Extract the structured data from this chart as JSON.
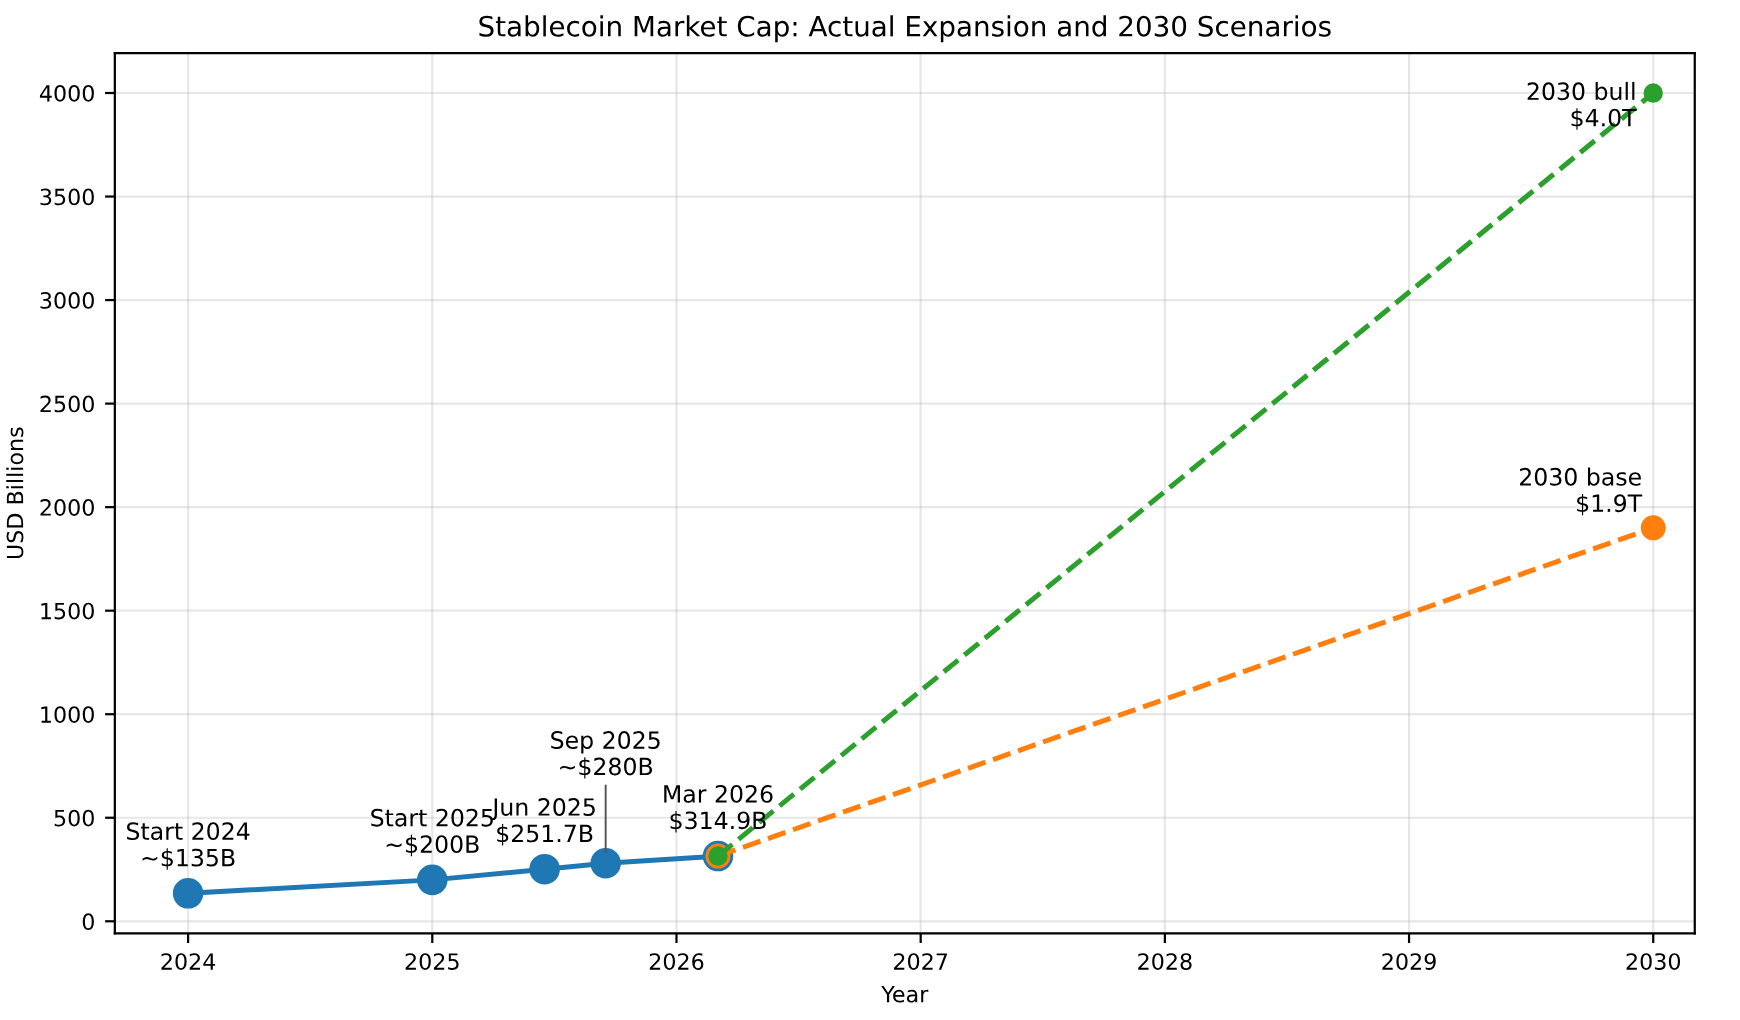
{
  "chart_data": {
    "type": "line",
    "title": "Stablecoin Market Cap: Actual Expansion and 2030 Scenarios",
    "xlabel": "Year",
    "ylabel": "USD Billions",
    "xlim": [
      2023.7,
      2030.17
    ],
    "xticks": [
      2024,
      2025,
      2026,
      2027,
      2028,
      2029,
      2030
    ],
    "ylim": [
      -58,
      4193
    ],
    "yticks": [
      0,
      500,
      1000,
      1500,
      2000,
      2500,
      3000,
      3500,
      4000
    ],
    "grid": true,
    "marker": "circle",
    "series": [
      {
        "color": "#1f77b4",
        "line_style": "solid",
        "x": [
          2024,
          2025,
          2025.46,
          2025.71,
          2026.17
        ],
        "values": [
          135,
          200,
          251.7,
          280,
          314.9
        ]
      },
      {
        "color": "#ff7f0e",
        "line_style": "dashed",
        "x": [
          2026.17,
          2030
        ],
        "values": [
          314.9,
          1900
        ]
      },
      {
        "color": "#2ca02c",
        "line_style": "dashed",
        "x": [
          2026.17,
          2030
        ],
        "values": [
          314.9,
          4000
        ]
      }
    ],
    "annotations": [
      {
        "text": "Start 2024\n~$135B",
        "x": 2024,
        "y": 135
      },
      {
        "text": "Start 2025\n~$200B",
        "x": 2025,
        "y": 200
      },
      {
        "text": "Jun 2025\n$251.7B",
        "x": 2025.46,
        "y": 251.7
      },
      {
        "text": "Sep 2025\n~$280B",
        "x": 2025.71,
        "y": 280
      },
      {
        "text": "Mar 2026\n$314.9B",
        "x": 2026.17,
        "y": 314.9
      },
      {
        "text": "2030 base\n$1.9T",
        "x": 2030,
        "y": 1900
      },
      {
        "text": "2030 bull\n$4.0T",
        "x": 2030,
        "y": 4000
      }
    ]
  }
}
